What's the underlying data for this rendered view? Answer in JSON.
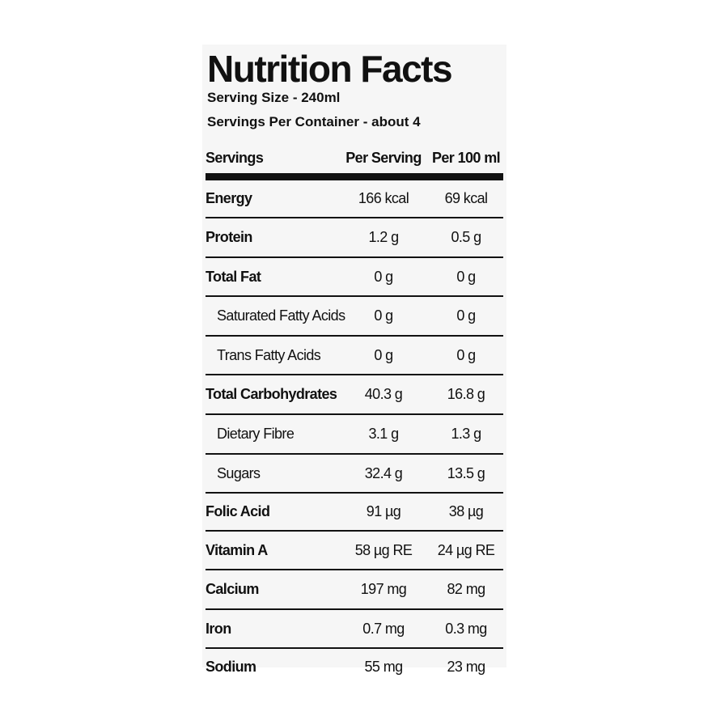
{
  "label": {
    "title": "Nutrition Facts",
    "serving_size": "Serving Size - 240ml",
    "servings_per_container": "Servings Per Container - about 4",
    "headers": {
      "name": "Servings",
      "per_serving": "Per Serving",
      "per_100ml": "Per 100 ml"
    },
    "rows": [
      {
        "name": "Energy",
        "per_serving": "166 kcal",
        "per_100ml": "69 kcal",
        "bold": true,
        "indent": false
      },
      {
        "name": "Protein",
        "per_serving": "1.2 g",
        "per_100ml": "0.5 g",
        "bold": true,
        "indent": false
      },
      {
        "name": "Total Fat",
        "per_serving": "0 g",
        "per_100ml": "0 g",
        "bold": true,
        "indent": false
      },
      {
        "name": "Saturated Fatty Acids",
        "per_serving": "0 g",
        "per_100ml": "0 g",
        "bold": false,
        "indent": true
      },
      {
        "name": "Trans Fatty Acids",
        "per_serving": "0 g",
        "per_100ml": "0 g",
        "bold": false,
        "indent": true
      },
      {
        "name": "Total Carbohydrates",
        "per_serving": "40.3 g",
        "per_100ml": "16.8 g",
        "bold": true,
        "indent": false
      },
      {
        "name": "Dietary Fibre",
        "per_serving": "3.1 g",
        "per_100ml": "1.3 g",
        "bold": false,
        "indent": true
      },
      {
        "name": "Sugars",
        "per_serving": "32.4 g",
        "per_100ml": "13.5 g",
        "bold": false,
        "indent": true
      },
      {
        "name": "Folic Acid",
        "per_serving": "91 µg",
        "per_100ml": "38 µg",
        "bold": true,
        "indent": false
      },
      {
        "name": "Vitamin A",
        "per_serving": "58 µg RE",
        "per_100ml": "24 µg RE",
        "bold": true,
        "indent": false
      },
      {
        "name": "Calcium",
        "per_serving": "197 mg",
        "per_100ml": "82 mg",
        "bold": true,
        "indent": false
      },
      {
        "name": "Iron",
        "per_serving": "0.7 mg",
        "per_100ml": "0.3 mg",
        "bold": true,
        "indent": false
      },
      {
        "name": "Sodium",
        "per_serving": "55 mg",
        "per_100ml": "23 mg",
        "bold": true,
        "indent": false
      }
    ]
  },
  "colors": {
    "ink": "#111111",
    "panel": "#f6f6f6",
    "background": "#ffffff"
  }
}
